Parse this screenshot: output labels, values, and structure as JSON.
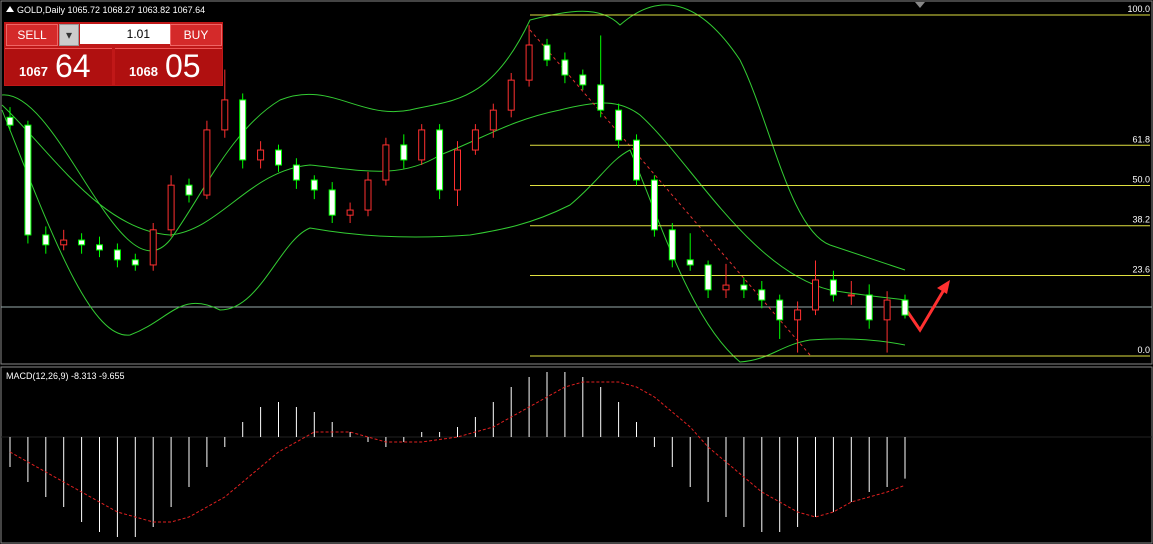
{
  "header": {
    "symbol_info": "GOLD,Daily  1065.72 1068.27 1063.82 1067.64"
  },
  "trade_panel": {
    "sell": "SELL",
    "lot": "1.01",
    "buy": "BUY",
    "bid_big": "1067",
    "bid_small": "64",
    "ask_big": "1068",
    "ask_small": "05"
  },
  "chart_data": {
    "type": "candlestick",
    "candles": [
      [
        70,
        73,
        66,
        67.7
      ],
      [
        67.7,
        69,
        33,
        35.5
      ],
      [
        35.5,
        38,
        30,
        32.6
      ],
      [
        32.6,
        37,
        31,
        34.0
      ],
      [
        34.0,
        36,
        30,
        32.6
      ],
      [
        32.6,
        35,
        29,
        31.1
      ],
      [
        31.1,
        33,
        26,
        28.2
      ],
      [
        28.2,
        30,
        25,
        26.7
      ],
      [
        26.7,
        39,
        25,
        37.0
      ],
      [
        37.0,
        53,
        35,
        50.1
      ],
      [
        50.1,
        52,
        45,
        47.2
      ],
      [
        47.2,
        69,
        46,
        66.3
      ],
      [
        66.3,
        84,
        64,
        75.1
      ],
      [
        75.1,
        77,
        55,
        57.5
      ],
      [
        57.5,
        63,
        55,
        60.4
      ],
      [
        60.4,
        62,
        54,
        56.0
      ],
      [
        56.0,
        58,
        49,
        51.6
      ],
      [
        51.6,
        53,
        46,
        48.7
      ],
      [
        48.7,
        51,
        39,
        41.3
      ],
      [
        41.3,
        45,
        39,
        42.8
      ],
      [
        42.8,
        54,
        41,
        51.6
      ],
      [
        51.6,
        64,
        50,
        61.9
      ],
      [
        61.9,
        65,
        55,
        57.5
      ],
      [
        57.5,
        68,
        56,
        66.3
      ],
      [
        66.3,
        68,
        46,
        48.7
      ],
      [
        48.7,
        63,
        44,
        60.4
      ],
      [
        60.4,
        68,
        59,
        66.3
      ],
      [
        66.3,
        74,
        64,
        72.1
      ],
      [
        72.1,
        83,
        70,
        80.9
      ],
      [
        80.9,
        97,
        79,
        91.2
      ],
      [
        91.2,
        93,
        85,
        86.8
      ],
      [
        86.8,
        89,
        80,
        82.4
      ],
      [
        82.4,
        84,
        78,
        79.5
      ],
      [
        79.5,
        94,
        70,
        72.1
      ],
      [
        72.1,
        74,
        61,
        63.3
      ],
      [
        63.3,
        65,
        50,
        51.6
      ],
      [
        51.6,
        53,
        35,
        37.0
      ],
      [
        37.0,
        39,
        26,
        28.2
      ],
      [
        28.2,
        36,
        25,
        26.7
      ],
      [
        26.7,
        28,
        17,
        19.4
      ],
      [
        19.4,
        27,
        17,
        20.8
      ],
      [
        20.8,
        23,
        17,
        19.4
      ],
      [
        19.4,
        22,
        14,
        16.4
      ],
      [
        16.4,
        18,
        5,
        10.6
      ],
      [
        10.6,
        16,
        1,
        13.5
      ],
      [
        13.5,
        28,
        12,
        22.3
      ],
      [
        22.3,
        25,
        16,
        17.9
      ],
      [
        17.9,
        22,
        15,
        17.9
      ],
      [
        17.9,
        21,
        8,
        10.6
      ],
      [
        10.6,
        19,
        1,
        16.4
      ],
      [
        16.4,
        18,
        11,
        12.0
      ]
    ],
    "fib_levels": [
      {
        "value": 100,
        "label": "100.0"
      },
      {
        "value": 61.8,
        "label": "61.8"
      },
      {
        "value": 50,
        "label": "50.0"
      },
      {
        "value": 38.2,
        "label": "38.2"
      },
      {
        "value": 23.6,
        "label": "23.6"
      },
      {
        "value": 0,
        "label": "0.0"
      }
    ],
    "up_color": "#ff3030",
    "down_color": "#00ff00"
  },
  "macd": {
    "label": "MACD(12,26,9) -8.313 -9.655",
    "histogram": [
      -6,
      -9,
      -12,
      -14,
      -17,
      -19,
      -20,
      -20,
      -18,
      -14,
      -10,
      -6,
      -2,
      3,
      6,
      7,
      6,
      5,
      3,
      1,
      -1,
      -2,
      -1,
      1,
      1,
      2,
      4,
      7,
      10,
      12,
      13,
      13,
      12,
      10,
      7,
      3,
      -2,
      -6,
      -10,
      -13,
      -16,
      -18,
      -19,
      -19,
      -18,
      -16,
      -15,
      -13,
      -11,
      -10,
      -8.313
    ],
    "signal": [
      -3,
      -5,
      -7,
      -9,
      -11,
      -13,
      -15,
      -16,
      -17,
      -17,
      -16,
      -14,
      -12,
      -9,
      -6,
      -3,
      -1,
      1,
      1,
      1,
      0,
      -1,
      -1,
      -1,
      -0.5,
      0,
      1,
      2,
      4,
      6,
      8,
      10,
      11,
      11,
      11,
      10,
      8,
      5,
      2,
      -2,
      -5,
      -8,
      -11,
      -13,
      -15,
      -16,
      -15,
      -13,
      -12,
      -11,
      -9.655
    ],
    "signal_color": "#e02020"
  }
}
